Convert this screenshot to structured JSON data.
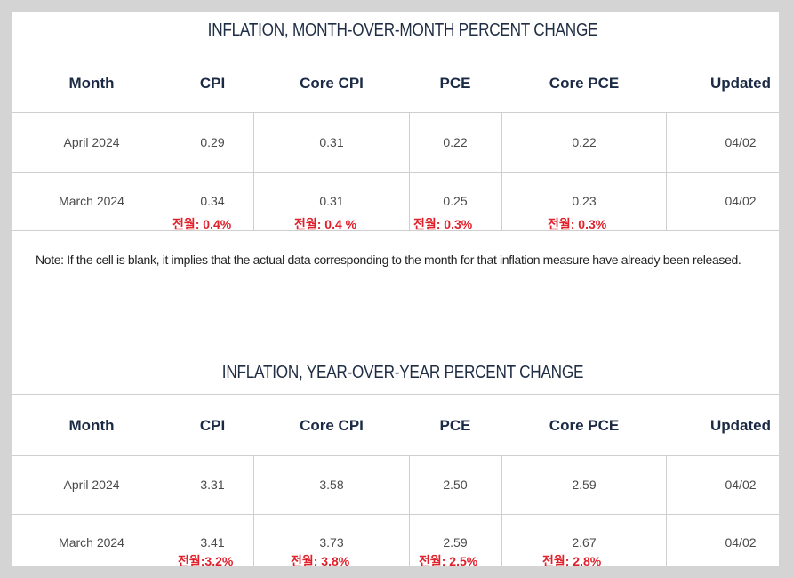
{
  "mom_table": {
    "title": "INFLATION, MONTH-OVER-MONTH PERCENT CHANGE",
    "headers": [
      "Month",
      "CPI",
      "Core CPI",
      "PCE",
      "Core PCE",
      "Updated"
    ],
    "rows": [
      [
        "April 2024",
        "0.29",
        "0.31",
        "0.22",
        "0.22",
        "04/02"
      ],
      [
        "March 2024",
        "0.34",
        "0.31",
        "0.25",
        "0.23",
        "04/02"
      ]
    ],
    "annotations": [
      "전월: 0.4%",
      "전월: 0.4 %",
      "전월: 0.3%",
      "전월: 0.3%"
    ]
  },
  "note": "Note: If the cell is blank, it implies that the actual data corresponding to the month for that inflation measure have already been released.",
  "yoy_table": {
    "title": "INFLATION, YEAR-OVER-YEAR PERCENT CHANGE",
    "headers": [
      "Month",
      "CPI",
      "Core CPI",
      "PCE",
      "Core PCE",
      "Updated"
    ],
    "rows": [
      [
        "April 2024",
        "3.31",
        "3.58",
        "2.50",
        "2.59",
        "04/02"
      ],
      [
        "March 2024",
        "3.41",
        "3.73",
        "2.59",
        "2.67",
        "04/02"
      ]
    ],
    "annotations": [
      "전월:3.2%",
      "전월: 3.8%",
      "전월: 2.5%",
      "전월: 2.8%"
    ]
  },
  "colors": {
    "annotation": "#e0202a",
    "header_text": "#1b2a45"
  }
}
